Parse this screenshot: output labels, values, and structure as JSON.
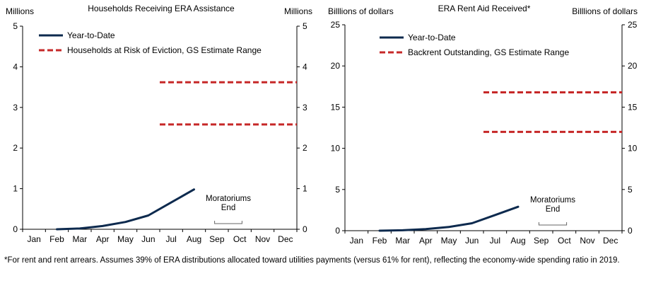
{
  "chart_data": [
    {
      "type": "line",
      "title": "Households  Receiving  ERA Assistance",
      "ylabel_left": "Millions",
      "ylabel_right": "Millions",
      "categories": [
        "Jan",
        "Feb",
        "Mar",
        "Apr",
        "May",
        "Jun",
        "Jul",
        "Aug",
        "Sep",
        "Oct",
        "Nov",
        "Dec"
      ],
      "ylim": [
        0,
        5
      ],
      "yticks": [
        0,
        1,
        2,
        3,
        4,
        5
      ],
      "series": [
        {
          "name": "Year-to-Date",
          "style": "solid",
          "color": "#0d2a4e",
          "points": [
            [
              "Feb",
              0.0
            ],
            [
              "Mar",
              0.02
            ],
            [
              "Apr",
              0.08
            ],
            [
              "May",
              0.18
            ],
            [
              "Jun",
              0.34
            ],
            [
              "Jul",
              0.66
            ],
            [
              "Aug",
              0.98
            ]
          ]
        },
        {
          "name": "Households at Risk of Eviction, GS Estimate Range",
          "style": "dashed",
          "color": "#c62828",
          "ranges": [
            {
              "from": "Jul",
              "to_end": true,
              "y": 2.58
            },
            {
              "from": "Jul",
              "to_end": true,
              "y": 3.62
            }
          ]
        }
      ],
      "annotation": {
        "lines": [
          "Moratoriums",
          "End"
        ],
        "between": [
          "Sep",
          "Oct"
        ]
      },
      "legend": "top-left"
    },
    {
      "type": "line",
      "title": "ERA Rent Aid Received*",
      "ylabel_left": "Billlions of dollars",
      "ylabel_right": "Billlions of dollars",
      "categories": [
        "Jan",
        "Feb",
        "Mar",
        "Apr",
        "May",
        "Jun",
        "Jul",
        "Aug",
        "Sep",
        "Oct",
        "Nov",
        "Dec"
      ],
      "ylim": [
        0,
        25
      ],
      "yticks": [
        0,
        5,
        10,
        15,
        20,
        25
      ],
      "series": [
        {
          "name": "Year-to-Date",
          "style": "solid",
          "color": "#0d2a4e",
          "points": [
            [
              "Feb",
              0.0
            ],
            [
              "Mar",
              0.05
            ],
            [
              "Apr",
              0.2
            ],
            [
              "May",
              0.45
            ],
            [
              "Jun",
              0.9
            ],
            [
              "Jul",
              1.9
            ],
            [
              "Aug",
              2.9
            ]
          ]
        },
        {
          "name": "Backrent Outstanding, GS Estimate Range",
          "style": "dashed",
          "color": "#c62828",
          "ranges": [
            {
              "from": "Jul",
              "to_end": true,
              "y": 12.0
            },
            {
              "from": "Jul",
              "to_end": true,
              "y": 16.8
            }
          ]
        }
      ],
      "annotation": {
        "lines": [
          "Moratoriums",
          "End"
        ],
        "between": [
          "Sep",
          "Oct"
        ]
      },
      "legend": "top-left"
    }
  ],
  "footnote": "*For rent and rent arrears. Assumes 39% of ERA distributions allocated toward utilities payments (versus 61% for rent), reflecting the economy-wide spending ratio in 2019."
}
